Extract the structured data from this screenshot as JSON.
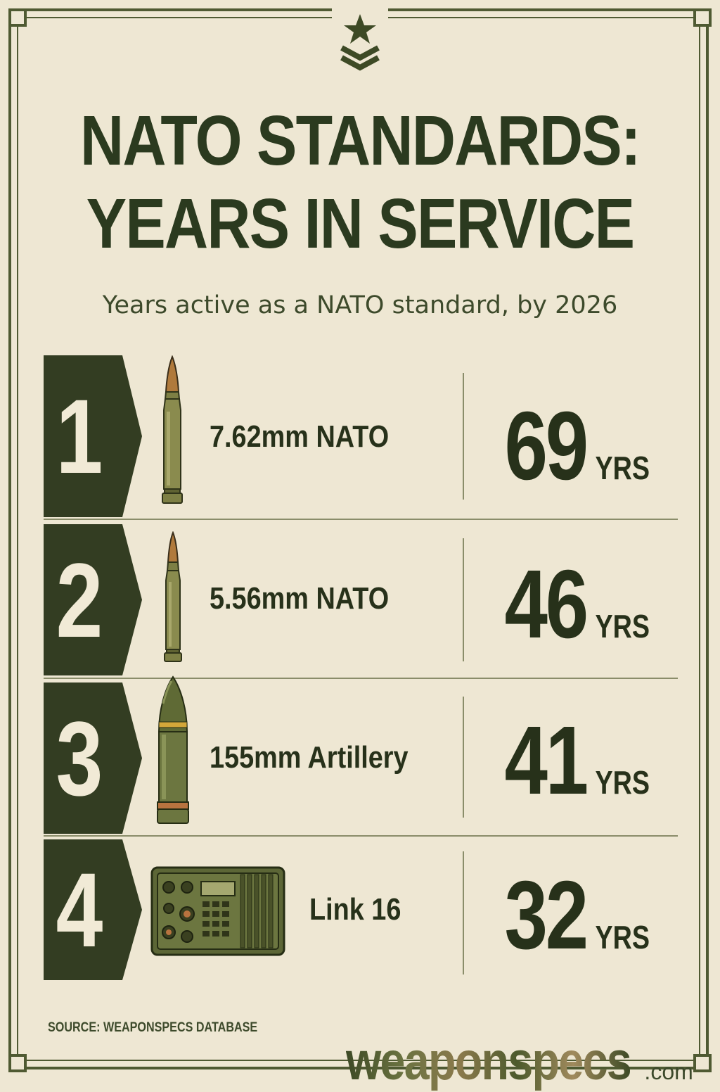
{
  "header": {
    "title_line1": "NATO STANDARDS:",
    "title_line2": "YEARS IN SERVICE",
    "subtitle": "Years active as a NATO standard, by 2026"
  },
  "items": [
    {
      "rank": "1",
      "name": "7.62mm NATO",
      "years": "69",
      "unit": "YRS",
      "icon": "rifle-cartridge-icon"
    },
    {
      "rank": "2",
      "name": "5.56mm NATO",
      "years": "46",
      "unit": "YRS",
      "icon": "small-cartridge-icon"
    },
    {
      "rank": "3",
      "name": "155mm Artillery",
      "years": "41",
      "unit": "YRS",
      "icon": "artillery-shell-icon"
    },
    {
      "rank": "4",
      "name": "Link 16",
      "years": "32",
      "unit": "YRS",
      "icon": "radio-terminal-icon"
    }
  ],
  "footer": {
    "source": "SOURCE: WEAPONSPECS DATABASE",
    "brand": "weaponspecs",
    "brand_tld": ".com"
  },
  "colors": {
    "background": "#eee7d3",
    "olive_dark": "#2b3a1f",
    "frame": "#4f5a32",
    "rank_box": "#333d22"
  }
}
